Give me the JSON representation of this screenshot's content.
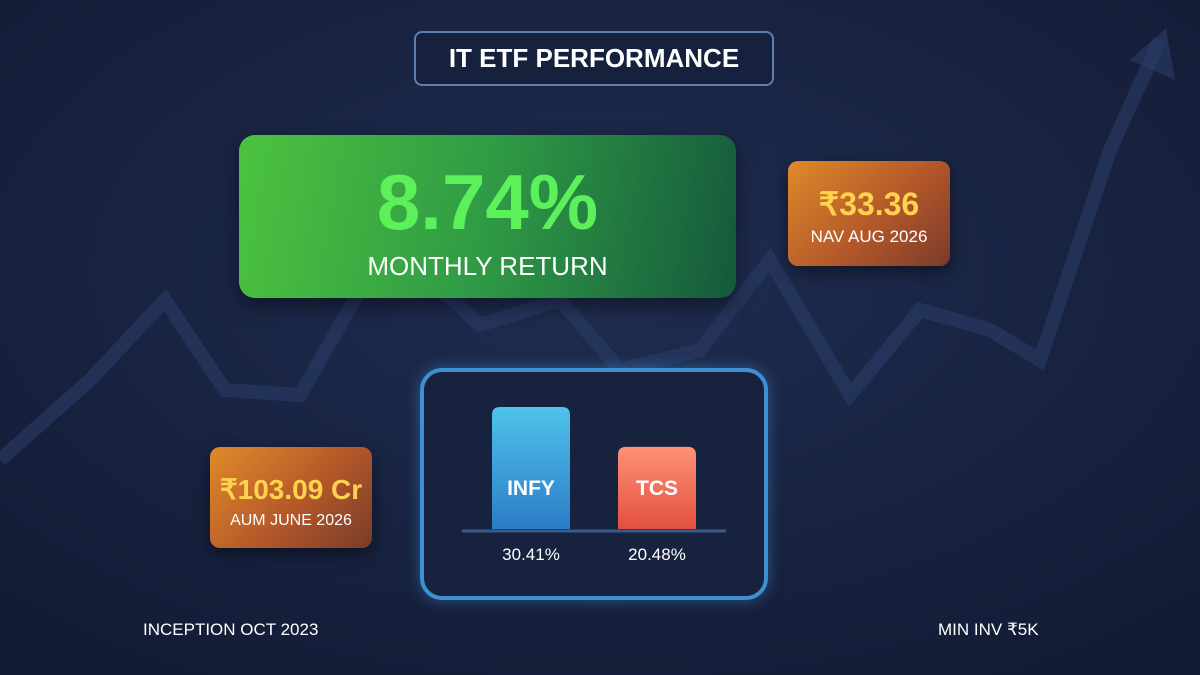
{
  "title": "IT ETF PERFORMANCE",
  "monthly_return": {
    "value": "8.74%",
    "label": "MONTHLY RETURN"
  },
  "nav": {
    "value": "₹33.36",
    "label": "NAV AUG 2026"
  },
  "aum": {
    "value": "₹103.09 Cr",
    "label": "AUM JUNE 2026"
  },
  "holdings": {
    "categories": [
      "INFY",
      "TCS"
    ],
    "values": [
      30.41,
      20.48
    ],
    "value_labels": [
      "30.41%",
      "20.48%"
    ]
  },
  "footer": {
    "inception": "INCEPTION OCT 2023",
    "min_investment": "MIN INV ₹5K"
  }
}
